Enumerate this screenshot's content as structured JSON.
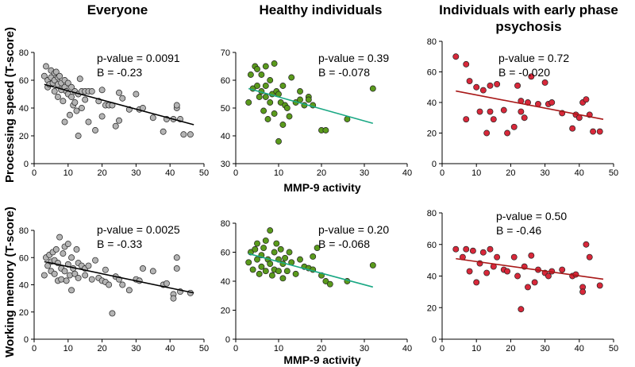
{
  "columns": [
    {
      "title_lines": [
        "Everyone"
      ]
    },
    {
      "title_lines": [
        "Healthy individuals"
      ]
    },
    {
      "title_lines": [
        "Individuals with early phase",
        "psychosis"
      ]
    }
  ],
  "row_labels": [
    "Processing speed (T-score)",
    "Working memory (T-score)"
  ],
  "x_axis_label": "MMP-9 activity",
  "colors": {
    "everyone_point": "#b4b4b4",
    "everyone_line": "#000000",
    "healthy_point": "#5a9a1c",
    "healthy_line": "#1aa884",
    "psychosis_point": "#d8283a",
    "psychosis_line": "#a81818"
  },
  "chart_data": [
    {
      "type": "scatter",
      "id": "processing-everyone",
      "row": 0,
      "col": 0,
      "ylabel": "Processing speed (T-score)",
      "xlabel": "",
      "xlim": [
        0,
        50
      ],
      "xticks": [
        0,
        10,
        20,
        30,
        40,
        50
      ],
      "xtick_labels": [
        "0",
        "10",
        "20",
        "30",
        "40",
        "50"
      ],
      "ylim": [
        0,
        80
      ],
      "yticks": [
        0,
        20,
        40,
        60,
        80
      ],
      "ytick_labels": [
        "0",
        "20",
        "40",
        "60",
        "80"
      ],
      "point_color": "#b4b4b4",
      "line_color": "#000000",
      "annotation": [
        "p-value = 0.0091",
        "B = -0.23"
      ],
      "fit": [
        [
          3,
          57
        ],
        [
          47,
          28
        ]
      ],
      "points": [
        [
          3,
          63
        ],
        [
          3.5,
          70
        ],
        [
          4,
          60
        ],
        [
          4,
          55
        ],
        [
          4.5,
          57
        ],
        [
          5,
          67
        ],
        [
          5,
          62
        ],
        [
          5.5,
          58
        ],
        [
          6,
          65
        ],
        [
          6,
          60
        ],
        [
          6,
          52
        ],
        [
          6.5,
          66
        ],
        [
          7,
          62
        ],
        [
          7,
          57
        ],
        [
          7,
          48
        ],
        [
          7.5,
          63
        ],
        [
          8,
          58
        ],
        [
          8,
          53
        ],
        [
          8.5,
          45
        ],
        [
          9,
          60
        ],
        [
          9,
          55
        ],
        [
          9,
          30
        ],
        [
          9.5,
          52
        ],
        [
          10,
          58
        ],
        [
          10,
          50
        ],
        [
          10.5,
          35
        ],
        [
          11,
          55
        ],
        [
          11,
          48
        ],
        [
          11.5,
          42
        ],
        [
          12,
          52
        ],
        [
          12,
          44
        ],
        [
          12.5,
          38
        ],
        [
          13,
          50
        ],
        [
          13,
          20
        ],
        [
          13.5,
          61
        ],
        [
          14,
          52
        ],
        [
          14,
          40
        ],
        [
          15,
          52
        ],
        [
          15,
          46
        ],
        [
          16,
          52
        ],
        [
          16,
          30
        ],
        [
          17,
          52
        ],
        [
          18,
          24
        ],
        [
          19,
          45
        ],
        [
          20,
          34
        ],
        [
          20,
          53
        ],
        [
          21,
          42
        ],
        [
          22,
          42
        ],
        [
          23,
          42
        ],
        [
          24,
          27
        ],
        [
          25,
          51
        ],
        [
          25,
          31
        ],
        [
          26,
          47
        ],
        [
          28,
          39
        ],
        [
          30,
          50
        ],
        [
          31,
          39
        ],
        [
          32,
          40
        ],
        [
          35,
          33
        ],
        [
          38,
          23
        ],
        [
          39,
          32
        ],
        [
          41,
          32
        ],
        [
          42,
          40
        ],
        [
          42,
          42
        ],
        [
          43,
          32
        ],
        [
          44,
          21
        ],
        [
          46,
          21
        ]
      ]
    },
    {
      "type": "scatter",
      "id": "processing-healthy",
      "row": 0,
      "col": 1,
      "ylabel": "",
      "xlabel": "MMP-9 activity",
      "xlim": [
        0,
        40
      ],
      "xticks": [
        0,
        10,
        20,
        30,
        40
      ],
      "xtick_labels": [
        "0",
        "10",
        "20",
        "30",
        "40"
      ],
      "ylim": [
        30,
        70
      ],
      "yticks": [
        30,
        40,
        50,
        60,
        70
      ],
      "ytick_labels": [
        "30",
        "40",
        "50",
        "60",
        "70"
      ],
      "point_color": "#5a9a1c",
      "line_color": "#1aa884",
      "annotation": [
        "p-value = 0.39",
        "B = -0.078"
      ],
      "fit": [
        [
          3,
          57
        ],
        [
          32,
          44.5
        ]
      ],
      "points": [
        [
          3,
          52
        ],
        [
          3.5,
          62
        ],
        [
          4,
          57
        ],
        [
          4.5,
          65
        ],
        [
          5,
          64
        ],
        [
          5,
          58
        ],
        [
          5.5,
          54
        ],
        [
          6,
          62
        ],
        [
          6,
          56
        ],
        [
          6.5,
          49
        ],
        [
          7,
          65
        ],
        [
          7,
          58
        ],
        [
          7,
          54
        ],
        [
          7.5,
          46
        ],
        [
          8,
          60
        ],
        [
          8,
          52
        ],
        [
          8.5,
          55
        ],
        [
          9,
          66
        ],
        [
          9,
          48
        ],
        [
          9.5,
          56
        ],
        [
          10,
          55
        ],
        [
          10,
          38
        ],
        [
          10.5,
          52
        ],
        [
          11,
          58
        ],
        [
          11,
          44
        ],
        [
          11.5,
          51
        ],
        [
          12,
          50
        ],
        [
          12.5,
          47
        ],
        [
          13,
          61
        ],
        [
          14,
          52
        ],
        [
          15,
          53
        ],
        [
          15,
          56
        ],
        [
          16,
          51
        ],
        [
          17,
          54
        ],
        [
          17,
          53
        ],
        [
          18,
          51
        ],
        [
          20,
          42
        ],
        [
          21,
          42
        ],
        [
          26,
          46
        ],
        [
          32,
          57
        ]
      ]
    },
    {
      "type": "scatter",
      "id": "processing-psychosis",
      "row": 0,
      "col": 2,
      "ylabel": "",
      "xlabel": "",
      "xlim": [
        0,
        50
      ],
      "xticks": [
        0,
        10,
        20,
        30,
        40,
        50
      ],
      "xtick_labels": [
        "0",
        "10",
        "20",
        "30",
        "40",
        "50"
      ],
      "ylim": [
        0,
        80
      ],
      "yticks": [
        0,
        20,
        40,
        60,
        80
      ],
      "ytick_labels": [
        "0",
        "20",
        "40",
        "60",
        "80"
      ],
      "point_color": "#d8283a",
      "line_color": "#a81818",
      "annotation": [
        "p-value = 0.72",
        "B = -0.020"
      ],
      "fit": [
        [
          4,
          47.5
        ],
        [
          47,
          29
        ]
      ],
      "points": [
        [
          4,
          70
        ],
        [
          7,
          65
        ],
        [
          7,
          29
        ],
        [
          8,
          54
        ],
        [
          10,
          50
        ],
        [
          11,
          34
        ],
        [
          12,
          48
        ],
        [
          13,
          20
        ],
        [
          14,
          34
        ],
        [
          14,
          51
        ],
        [
          15,
          29
        ],
        [
          16,
          52
        ],
        [
          18,
          35
        ],
        [
          19,
          20
        ],
        [
          21,
          24
        ],
        [
          22,
          51
        ],
        [
          23,
          41
        ],
        [
          23,
          34
        ],
        [
          24,
          30
        ],
        [
          25,
          40
        ],
        [
          26,
          57
        ],
        [
          28,
          39
        ],
        [
          30,
          53
        ],
        [
          31,
          39
        ],
        [
          32,
          40
        ],
        [
          35,
          33
        ],
        [
          38,
          23
        ],
        [
          39,
          32
        ],
        [
          40,
          30
        ],
        [
          41,
          40
        ],
        [
          42,
          42
        ],
        [
          43,
          32
        ],
        [
          44,
          21
        ],
        [
          46,
          21
        ]
      ]
    },
    {
      "type": "scatter",
      "id": "memory-everyone",
      "row": 1,
      "col": 0,
      "ylabel": "Working memory (T-score)",
      "xlabel": "",
      "xlim": [
        0,
        50
      ],
      "xticks": [
        0,
        10,
        20,
        30,
        40,
        50
      ],
      "xtick_labels": [
        "0",
        "10",
        "20",
        "30",
        "40",
        "50"
      ],
      "ylim": [
        0,
        80
      ],
      "yticks": [
        0,
        20,
        40,
        60,
        80
      ],
      "ytick_labels": [
        "0",
        "20",
        "40",
        "60",
        "80"
      ],
      "point_color": "#b4b4b4",
      "line_color": "#000000",
      "annotation": [
        "p-value = 0.0025",
        "B = -0.33"
      ],
      "fit": [
        [
          3,
          57
        ],
        [
          47,
          34
        ]
      ],
      "points": [
        [
          3,
          47
        ],
        [
          3.5,
          60
        ],
        [
          4,
          54
        ],
        [
          4.5,
          62
        ],
        [
          5,
          57
        ],
        [
          5,
          50
        ],
        [
          5.5,
          64
        ],
        [
          6,
          48
        ],
        [
          6,
          58
        ],
        [
          6.5,
          66
        ],
        [
          7,
          43
        ],
        [
          7,
          56
        ],
        [
          7.5,
          75
        ],
        [
          8,
          52
        ],
        [
          8,
          44
        ],
        [
          8.5,
          63
        ],
        [
          9,
          68
        ],
        [
          9,
          50
        ],
        [
          9.5,
          43
        ],
        [
          10,
          55
        ],
        [
          10,
          70
        ],
        [
          10.5,
          47
        ],
        [
          11,
          60
        ],
        [
          11,
          36
        ],
        [
          11.5,
          52
        ],
        [
          12,
          48
        ],
        [
          12.5,
          66
        ],
        [
          13,
          45
        ],
        [
          13,
          56
        ],
        [
          14,
          54
        ],
        [
          15,
          47
        ],
        [
          15,
          52
        ],
        [
          16,
          54
        ],
        [
          17,
          44
        ],
        [
          18,
          58
        ],
        [
          19,
          45
        ],
        [
          20,
          43
        ],
        [
          21,
          42
        ],
        [
          21,
          51
        ],
        [
          22,
          40
        ],
        [
          23,
          19
        ],
        [
          24,
          46
        ],
        [
          25,
          44
        ],
        [
          26,
          40
        ],
        [
          28,
          36
        ],
        [
          30,
          44
        ],
        [
          31,
          43
        ],
        [
          32,
          52
        ],
        [
          35,
          50
        ],
        [
          38,
          40
        ],
        [
          39,
          41
        ],
        [
          41,
          33
        ],
        [
          41,
          30
        ],
        [
          42,
          60
        ],
        [
          42,
          52
        ],
        [
          43,
          35
        ],
        [
          46,
          34
        ]
      ]
    },
    {
      "type": "scatter",
      "id": "memory-healthy",
      "row": 1,
      "col": 1,
      "ylabel": "",
      "xlabel": "MMP-9 activity",
      "xlim": [
        0,
        40
      ],
      "xticks": [
        0,
        10,
        20,
        30,
        40
      ],
      "xtick_labels": [
        "0",
        "10",
        "20",
        "30",
        "40"
      ],
      "ylim": [
        0,
        80
      ],
      "yticks": [
        0,
        20,
        40,
        60,
        80
      ],
      "ytick_labels": [
        "0",
        "20",
        "40",
        "60",
        "80"
      ],
      "point_color": "#5a9a1c",
      "line_color": "#1aa884",
      "annotation": [
        "p-value = 0.20",
        "B = -0.068"
      ],
      "fit": [
        [
          3,
          59
        ],
        [
          32,
          36
        ]
      ],
      "points": [
        [
          3,
          53
        ],
        [
          3.5,
          60
        ],
        [
          4,
          48
        ],
        [
          4.5,
          62
        ],
        [
          5,
          55
        ],
        [
          5,
          66
        ],
        [
          5.5,
          45
        ],
        [
          6,
          58
        ],
        [
          6,
          50
        ],
        [
          6.5,
          63
        ],
        [
          7,
          47
        ],
        [
          7,
          68
        ],
        [
          7.5,
          55
        ],
        [
          8,
          75
        ],
        [
          8,
          52
        ],
        [
          8.5,
          44
        ],
        [
          9,
          60
        ],
        [
          9,
          48
        ],
        [
          9.5,
          66
        ],
        [
          10,
          55
        ],
        [
          10,
          47
        ],
        [
          10.5,
          62
        ],
        [
          11,
          52
        ],
        [
          11,
          42
        ],
        [
          11.5,
          56
        ],
        [
          12,
          47
        ],
        [
          12.5,
          60
        ],
        [
          13,
          53
        ],
        [
          14,
          45
        ],
        [
          15,
          55
        ],
        [
          16,
          50
        ],
        [
          17,
          49
        ],
        [
          18,
          57
        ],
        [
          18,
          48
        ],
        [
          19,
          63
        ],
        [
          20,
          44
        ],
        [
          21,
          40
        ],
        [
          22,
          38
        ],
        [
          26,
          40
        ],
        [
          32,
          51
        ]
      ]
    },
    {
      "type": "scatter",
      "id": "memory-psychosis",
      "row": 1,
      "col": 2,
      "ylabel": "",
      "xlabel": "",
      "xlim": [
        0,
        50
      ],
      "xticks": [
        0,
        10,
        20,
        30,
        40,
        50
      ],
      "xtick_labels": [
        "0",
        "10",
        "20",
        "30",
        "40",
        "50"
      ],
      "ylim": [
        0,
        80
      ],
      "yticks": [
        0,
        20,
        40,
        60,
        80
      ],
      "ytick_labels": [
        "0",
        "20",
        "40",
        "60",
        "80"
      ],
      "point_color": "#d8283a",
      "line_color": "#a81818",
      "annotation": [
        "p-value = 0.50",
        "B = -0.46"
      ],
      "fit": [
        [
          4,
          51
        ],
        [
          47,
          38
        ]
      ],
      "points": [
        [
          4,
          57
        ],
        [
          6,
          52
        ],
        [
          7,
          57
        ],
        [
          8,
          43
        ],
        [
          9,
          56
        ],
        [
          10,
          36
        ],
        [
          11,
          48
        ],
        [
          12,
          55
        ],
        [
          13,
          42
        ],
        [
          14,
          57
        ],
        [
          15,
          46
        ],
        [
          16,
          52
        ],
        [
          18,
          44
        ],
        [
          19,
          43
        ],
        [
          21,
          52
        ],
        [
          22,
          40
        ],
        [
          23,
          19
        ],
        [
          24,
          46
        ],
        [
          25,
          33
        ],
        [
          26,
          53
        ],
        [
          27,
          36
        ],
        [
          28,
          44
        ],
        [
          30,
          42
        ],
        [
          31,
          40
        ],
        [
          32,
          43
        ],
        [
          35,
          44
        ],
        [
          38,
          40
        ],
        [
          39,
          41
        ],
        [
          41,
          33
        ],
        [
          41,
          30
        ],
        [
          42,
          60
        ],
        [
          43,
          52
        ],
        [
          46,
          34
        ]
      ]
    }
  ]
}
